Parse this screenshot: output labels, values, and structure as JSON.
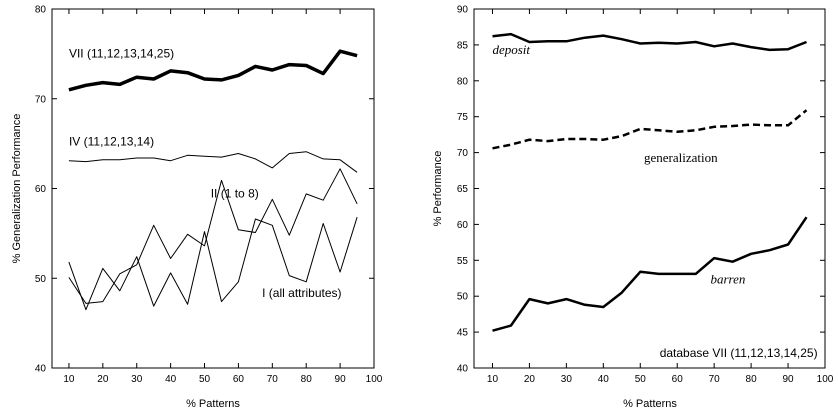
{
  "chart_data": [
    {
      "type": "line",
      "xlabel": "% Patterns",
      "ylabel": "% Generalization Performance",
      "xlim": [
        5,
        100
      ],
      "ylim": [
        40,
        80
      ],
      "xticks": [
        10,
        20,
        30,
        40,
        50,
        60,
        70,
        80,
        90,
        100
      ],
      "yticks": [
        40,
        50,
        60,
        70,
        80
      ],
      "x": [
        10,
        15,
        20,
        25,
        30,
        35,
        40,
        45,
        50,
        55,
        60,
        65,
        70,
        75,
        80,
        85,
        90,
        95
      ],
      "series": [
        {
          "name": "VII (11,12,13,14,25)",
          "values": [
            71.0,
            71.5,
            71.8,
            71.6,
            72.4,
            72.2,
            73.1,
            72.9,
            72.2,
            72.1,
            72.6,
            73.6,
            73.2,
            73.8,
            73.7,
            72.8,
            75.3,
            74.8
          ],
          "stroke_width": 3.5,
          "dash": "solid",
          "color": "#000000",
          "label": {
            "text": "VII (11,12,13,14,25)",
            "x": 10,
            "y": 74.6,
            "anchor": "start"
          }
        },
        {
          "name": "IV (11,12,13,14)",
          "values": [
            63.1,
            63.0,
            63.2,
            63.2,
            63.4,
            63.4,
            63.1,
            63.7,
            63.6,
            63.5,
            63.9,
            63.3,
            62.3,
            63.9,
            64.1,
            63.3,
            63.2,
            61.8
          ],
          "stroke_width": 1,
          "dash": "solid",
          "color": "#000000",
          "label": {
            "text": "IV (11,12,13,14)",
            "x": 10,
            "y": 64.8,
            "anchor": "start"
          }
        },
        {
          "name": "II (1 to 8)",
          "values": [
            51.8,
            46.5,
            51.1,
            48.6,
            52.4,
            46.9,
            50.6,
            47.1,
            55.2,
            47.4,
            49.6,
            56.6,
            55.9,
            50.3,
            49.6,
            56.1,
            50.7,
            56.8
          ],
          "stroke_width": 1,
          "dash": "solid",
          "color": "#000000",
          "label": {
            "text": "II (1 to 8)",
            "x": 66,
            "y": 59.0,
            "anchor": "end"
          }
        },
        {
          "name": "I (all attributes)",
          "values": [
            50.1,
            47.2,
            47.4,
            50.5,
            51.5,
            55.9,
            52.2,
            54.9,
            53.6,
            60.9,
            55.4,
            55.1,
            58.8,
            54.8,
            59.4,
            58.7,
            62.2,
            58.3
          ],
          "stroke_width": 1,
          "dash": "solid",
          "color": "#000000",
          "label": {
            "text": "I (all attributes)",
            "x": 67,
            "y": 47.9,
            "anchor": "start"
          }
        }
      ]
    },
    {
      "type": "line",
      "xlabel": "% Patterns",
      "ylabel": "% Performance",
      "xlim": [
        5,
        100
      ],
      "ylim": [
        40,
        90
      ],
      "xticks": [
        10,
        20,
        30,
        40,
        50,
        60,
        70,
        80,
        90,
        100
      ],
      "yticks": [
        40,
        45,
        50,
        55,
        60,
        65,
        70,
        75,
        80,
        85,
        90
      ],
      "x": [
        10,
        15,
        20,
        25,
        30,
        35,
        40,
        45,
        50,
        55,
        60,
        65,
        70,
        75,
        80,
        85,
        90,
        95
      ],
      "annotation": {
        "text": "database VII (11,12,13,14,25)",
        "x": 98,
        "y": 41.5
      },
      "series": [
        {
          "name": "deposit",
          "values": [
            86.2,
            86.5,
            85.4,
            85.5,
            85.5,
            86.0,
            86.3,
            85.8,
            85.2,
            85.3,
            85.2,
            85.4,
            84.8,
            85.2,
            84.7,
            84.3,
            84.4,
            85.4
          ],
          "stroke_width": 2.5,
          "dash": "solid",
          "color": "#000000",
          "label": {
            "text": "deposit",
            "x": 10,
            "y": 83.7,
            "anchor": "start",
            "italic": true
          }
        },
        {
          "name": "generalization",
          "values": [
            70.6,
            71.1,
            71.8,
            71.6,
            71.9,
            71.9,
            71.8,
            72.3,
            73.3,
            73.1,
            72.9,
            73.1,
            73.6,
            73.7,
            73.9,
            73.8,
            73.8,
            75.9
          ],
          "stroke_width": 2.5,
          "dash": "dashed",
          "color": "#000000",
          "label": {
            "text": "generalization",
            "x": 51,
            "y": 68.7,
            "anchor": "start",
            "italic": false
          }
        },
        {
          "name": "barren",
          "values": [
            45.2,
            45.9,
            49.6,
            49.0,
            49.6,
            48.8,
            48.5,
            50.5,
            53.4,
            53.1,
            53.1,
            53.1,
            55.3,
            54.8,
            55.9,
            56.4,
            57.2,
            61.0
          ],
          "stroke_width": 2.5,
          "dash": "solid",
          "color": "#000000",
          "label": {
            "text": "barren",
            "x": 69,
            "y": 51.8,
            "anchor": "start",
            "italic": true
          }
        }
      ]
    }
  ]
}
